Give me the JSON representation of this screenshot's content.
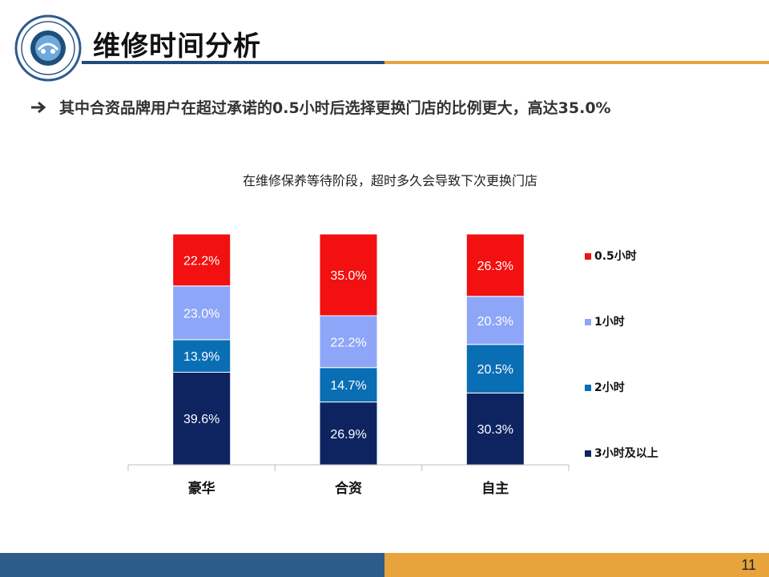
{
  "slide": {
    "title": "维修时间分析",
    "bullet": "其中合资品牌用户在超过承诺的0.5小时后选择更换门店的比例更大，高达35.0%",
    "page_number": "11",
    "icons": [
      "logo-emblem-icon",
      "arrow-right-icon"
    ]
  },
  "colors": {
    "title_rule_blue": "#1F4E79",
    "title_rule_orange": "#E8A33D",
    "footer_blue": "#2E5C8A",
    "footer_orange": "#E8A33D"
  },
  "chart_data": {
    "type": "bar",
    "stacked": true,
    "percent_stacked": true,
    "title": "在维修保养等待阶段，超时多久会导致下次更换门店",
    "categories": [
      "豪华",
      "合资",
      "自主"
    ],
    "series": [
      {
        "name": "3小时及以上",
        "color": "#0E2461",
        "values": [
          39.6,
          26.9,
          30.3
        ],
        "labels": [
          "39.6%",
          "26.9%",
          "30.3%"
        ]
      },
      {
        "name": "2小时",
        "color": "#0A6EB4",
        "values": [
          13.9,
          14.7,
          20.5
        ],
        "labels": [
          "13.9%",
          "14.7%",
          "20.5%"
        ]
      },
      {
        "name": "1小时",
        "color": "#8EA6F8",
        "values": [
          23.0,
          22.2,
          20.3
        ],
        "labels": [
          "23.0%",
          "22.2%",
          "20.3%"
        ]
      },
      {
        "name": "0.5小时",
        "color": "#F21010",
        "values": [
          22.2,
          35.0,
          26.3
        ],
        "labels": [
          "22.2%",
          "35.0%",
          "26.3%"
        ]
      }
    ],
    "legend_position": "right",
    "grid": false,
    "ylim": [
      0,
      100
    ]
  }
}
